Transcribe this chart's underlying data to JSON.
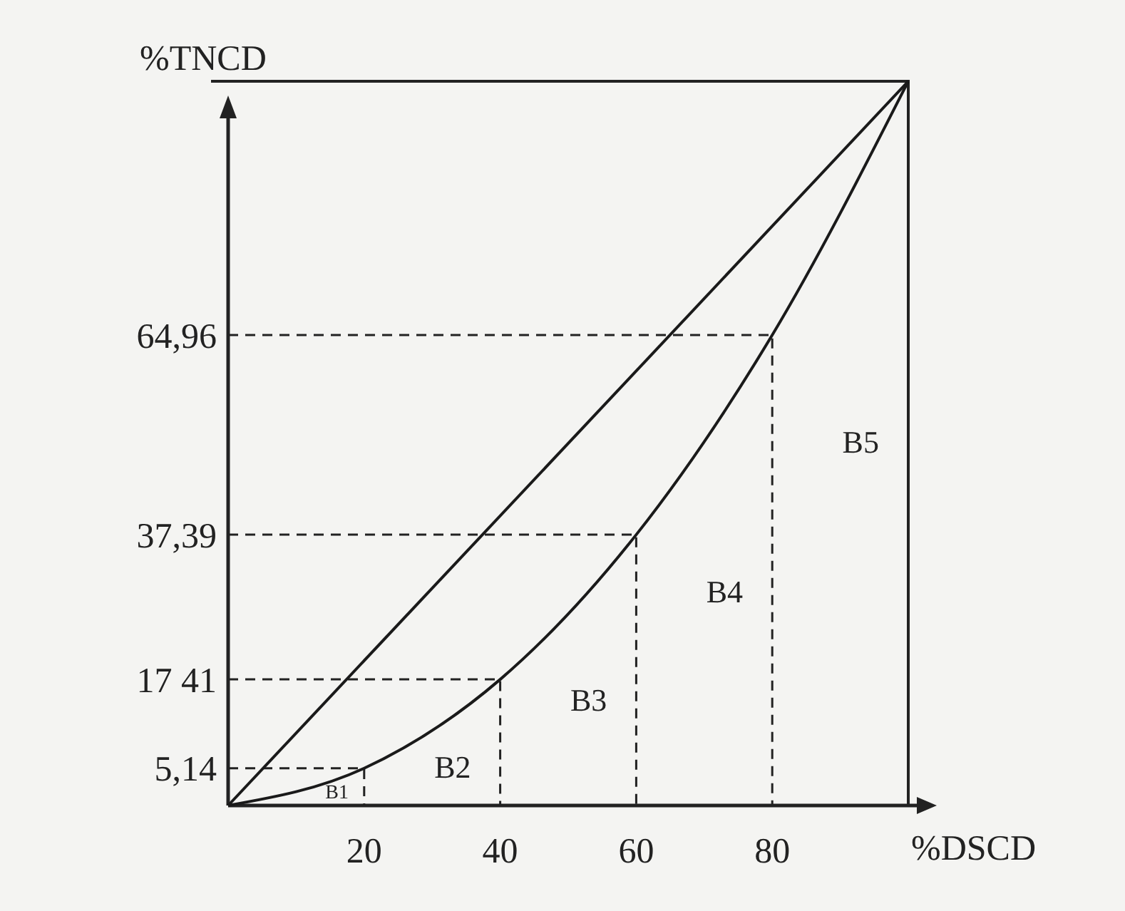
{
  "chart_data": {
    "type": "line",
    "xlabel": "%DSCD",
    "ylabel": "%TNCD",
    "x": [
      0,
      20,
      40,
      60,
      80,
      100
    ],
    "series": [
      {
        "color": "#1a1a1a",
        "x": [
          0,
          100
        ],
        "values": [
          0,
          100
        ]
      },
      {
        "color": "#1a1a1a",
        "values": [
          0,
          5.14,
          17.41,
          37.39,
          64.96,
          100
        ]
      },
      {
        "color": "#222222",
        "line_style": "dashed",
        "x": [
          0,
          20,
          20
        ],
        "values": [
          5.14,
          5.14,
          0
        ]
      },
      {
        "color": "#222222",
        "line_style": "dashed",
        "x": [
          0,
          40,
          40
        ],
        "values": [
          17.41,
          17.41,
          0
        ]
      },
      {
        "color": "#222222",
        "line_style": "dashed",
        "x": [
          0,
          60,
          60
        ],
        "values": [
          37.39,
          37.39,
          0
        ]
      },
      {
        "color": "#222222",
        "line_style": "dashed",
        "x": [
          0,
          80,
          80
        ],
        "values": [
          64.96,
          64.96,
          0
        ]
      }
    ],
    "xlim": [
      0,
      100
    ],
    "ylim": [
      0,
      100
    ],
    "xticks": [
      20,
      40,
      60,
      80
    ],
    "yticks": [
      {
        "value": 5.14,
        "label": "5,14"
      },
      {
        "value": 17.41,
        "label": "17 41"
      },
      {
        "value": 37.39,
        "label": "37,39"
      },
      {
        "value": 64.96,
        "label": "64,96"
      }
    ],
    "annotations": [
      "B1",
      "B2",
      "B3",
      "B4",
      "B5"
    ],
    "grid": false,
    "marker": "none",
    "line_style": "solid"
  }
}
